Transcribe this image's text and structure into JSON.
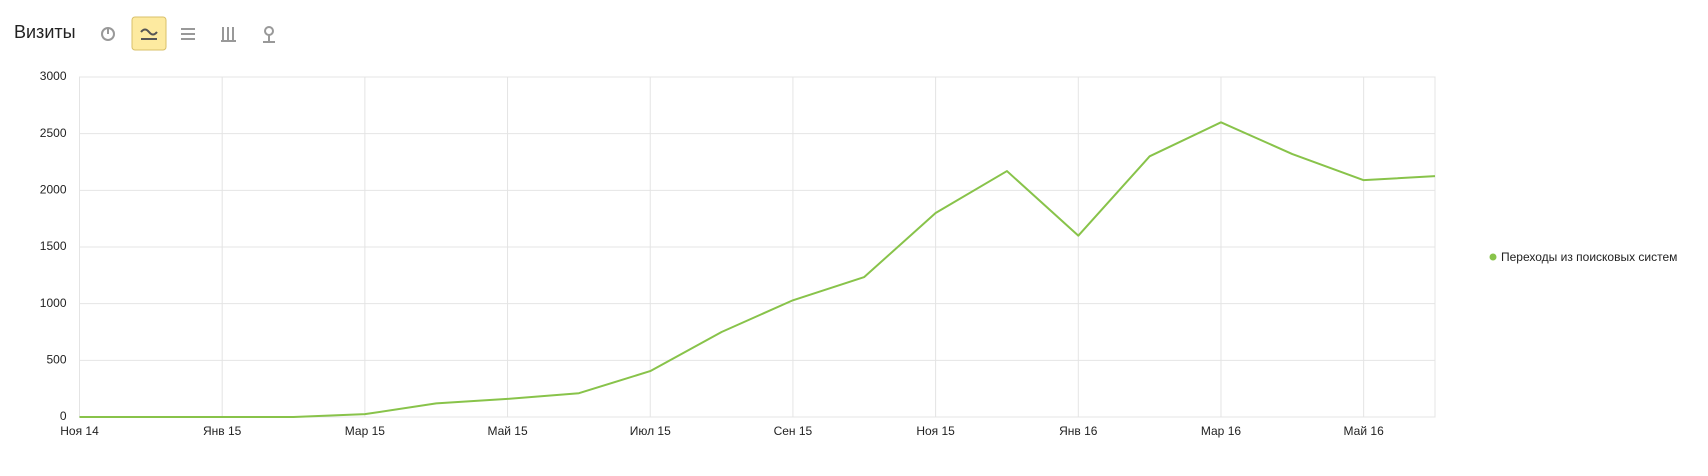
{
  "chart_data": {
    "type": "line",
    "title": "Визиты",
    "categories": [
      "Ноя 14",
      null,
      "Янв 15",
      null,
      "Мар 15",
      null,
      "Май 15",
      null,
      "Июл 15",
      null,
      "Сен 15",
      null,
      "Ноя 15",
      null,
      "Янв 16",
      null,
      "Мар 16",
      null,
      "Май 16",
      null
    ],
    "series": [
      {
        "name": "Переходы из поисковых систем",
        "color": "#88c34a",
        "values": [
          0,
          0,
          0,
          0,
          25,
          120,
          160,
          210,
          405,
          750,
          1030,
          1235,
          1800,
          2170,
          1600,
          2300,
          2600,
          2320,
          2090,
          2125
        ]
      }
    ],
    "ylim": [
      0,
      3000
    ],
    "yticks": [
      0,
      500,
      1000,
      1500,
      2000,
      2500,
      3000
    ],
    "grid": true
  }
}
